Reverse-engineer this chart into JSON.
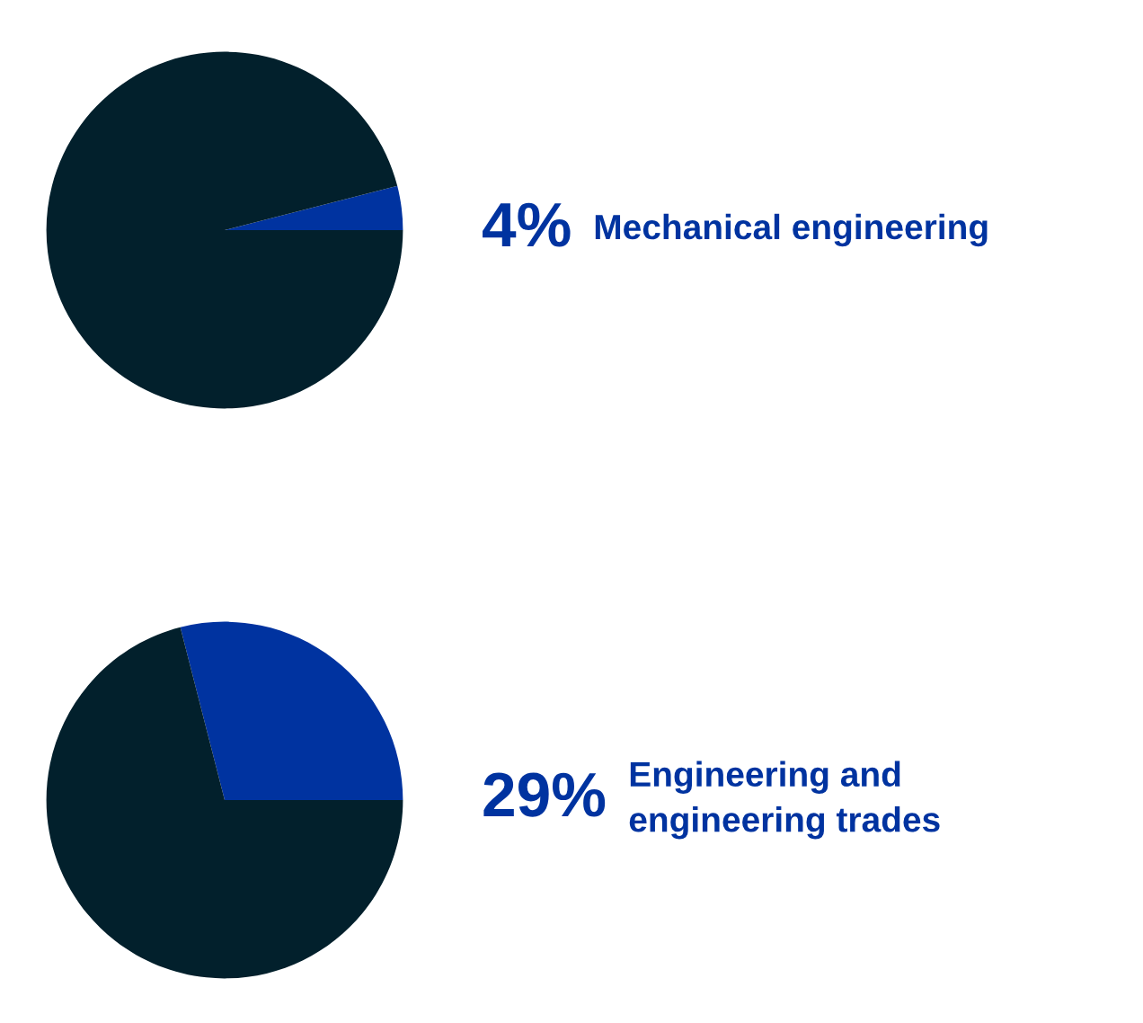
{
  "chart_data": [
    {
      "type": "pie",
      "categories": [
        "Mechanical engineering",
        null
      ],
      "values": [
        4,
        96
      ],
      "colors": [
        "#0033a0",
        "#02202c"
      ],
      "value_labels": [
        "4%",
        null
      ]
    },
    {
      "type": "pie",
      "categories": [
        "Engineering and\nengineering trades",
        null
      ],
      "values": [
        29,
        71
      ],
      "colors": [
        "#0033a0",
        "#02202c"
      ],
      "value_labels": [
        "29%",
        null
      ]
    }
  ]
}
